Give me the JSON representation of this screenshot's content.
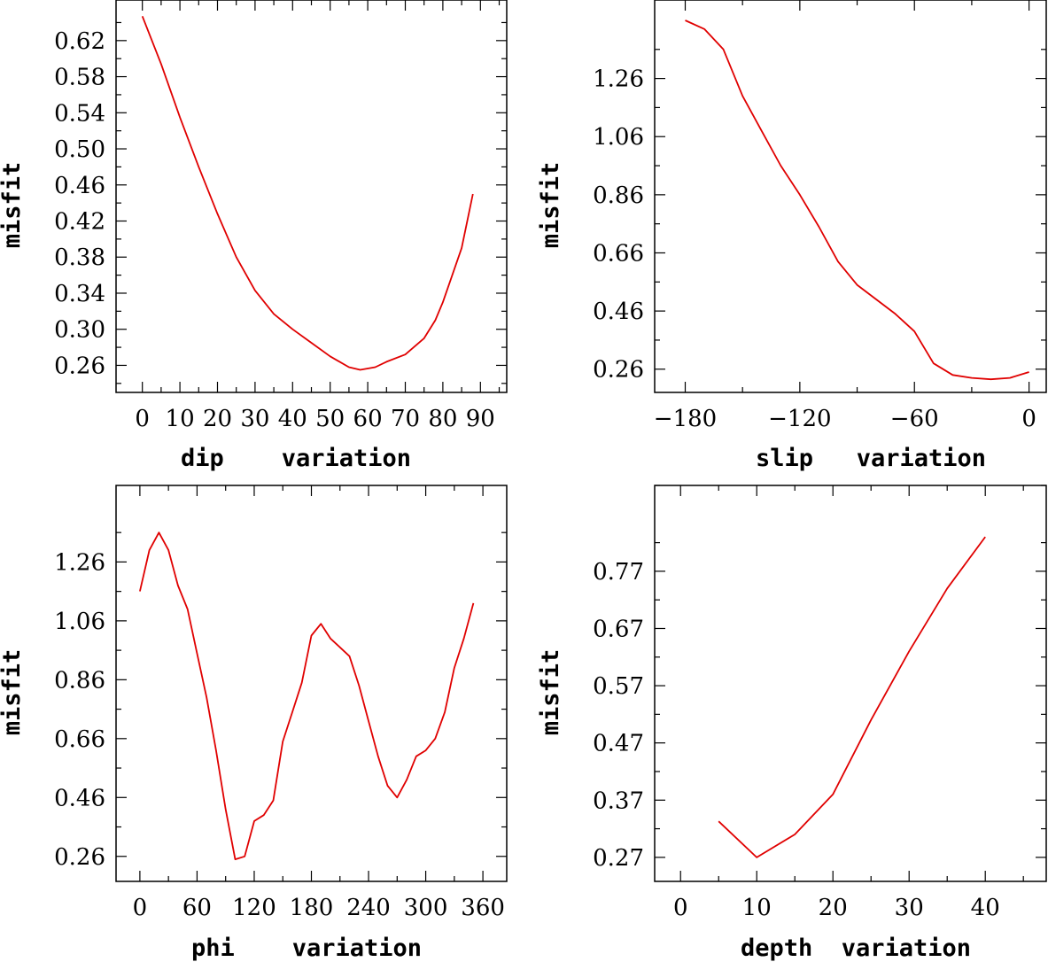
{
  "chart_data": [
    {
      "type": "line",
      "name": "dip",
      "xlabel": "dip    variation",
      "ylabel": "misfit",
      "xlim": [
        -7,
        97
      ],
      "ylim": [
        0.23,
        0.665
      ],
      "xticks": [
        0,
        10,
        20,
        30,
        40,
        50,
        60,
        70,
        80,
        90
      ],
      "xtick_labels": [
        "0",
        "10",
        "20",
        "30",
        "40",
        "50",
        "60",
        "70",
        "80",
        "90"
      ],
      "yticks": [
        0.26,
        0.3,
        0.34,
        0.38,
        0.42,
        0.46,
        0.5,
        0.54,
        0.58,
        0.62
      ],
      "ytick_labels": [
        "0.26",
        "0.30",
        "0.34",
        "0.38",
        "0.42",
        "0.46",
        "0.50",
        "0.54",
        "0.58",
        "0.62"
      ],
      "series": [
        {
          "name": "misfit",
          "color": "#e00000",
          "x": [
            0,
            5,
            10,
            15,
            20,
            25,
            30,
            35,
            40,
            45,
            50,
            55,
            58,
            62,
            65,
            70,
            75,
            78,
            80,
            85,
            88
          ],
          "y": [
            0.647,
            0.594,
            0.535,
            0.48,
            0.428,
            0.38,
            0.343,
            0.317,
            0.3,
            0.285,
            0.27,
            0.258,
            0.255,
            0.258,
            0.264,
            0.272,
            0.29,
            0.31,
            0.33,
            0.39,
            0.45
          ]
        }
      ]
    },
    {
      "type": "line",
      "name": "slip",
      "xlabel": "slip   variation",
      "ylabel": "misfit",
      "xlim": [
        -196,
        9
      ],
      "ylim": [
        0.18,
        1.53
      ],
      "xticks": [
        -180,
        -120,
        -60,
        0
      ],
      "xtick_labels": [
        "−180",
        "−120",
        "−60",
        "0"
      ],
      "yticks": [
        0.26,
        0.46,
        0.66,
        0.86,
        1.06,
        1.26
      ],
      "ytick_labels": [
        "0.26",
        "0.46",
        "0.66",
        "0.86",
        "1.06",
        "1.26"
      ],
      "series": [
        {
          "name": "misfit",
          "color": "#e00000",
          "x": [
            -180,
            -170,
            -160,
            -150,
            -140,
            -130,
            -120,
            -110,
            -100,
            -90,
            -80,
            -70,
            -60,
            -50,
            -40,
            -30,
            -20,
            -10,
            0
          ],
          "y": [
            1.46,
            1.43,
            1.36,
            1.2,
            1.08,
            0.96,
            0.86,
            0.75,
            0.63,
            0.55,
            0.5,
            0.45,
            0.39,
            0.28,
            0.24,
            0.23,
            0.225,
            0.23,
            0.25
          ]
        }
      ]
    },
    {
      "type": "line",
      "name": "phi",
      "xlabel": "phi    variation",
      "ylabel": "misfit",
      "xlim": [
        -25,
        385
      ],
      "ylim": [
        0.175,
        1.52
      ],
      "xticks": [
        0,
        60,
        120,
        180,
        240,
        300,
        360
      ],
      "xtick_labels": [
        "0",
        "60",
        "120",
        "180",
        "240",
        "300",
        "360"
      ],
      "yticks": [
        0.26,
        0.46,
        0.66,
        0.86,
        1.06,
        1.26
      ],
      "ytick_labels": [
        "0.26",
        "0.46",
        "0.66",
        "0.86",
        "1.06",
        "1.26"
      ],
      "series": [
        {
          "name": "misfit",
          "color": "#e00000",
          "x": [
            0,
            10,
            20,
            30,
            40,
            50,
            60,
            70,
            80,
            90,
            100,
            110,
            120,
            130,
            140,
            150,
            160,
            170,
            180,
            190,
            200,
            210,
            220,
            230,
            240,
            250,
            260,
            270,
            280,
            290,
            300,
            310,
            320,
            330,
            340,
            350
          ],
          "y": [
            1.16,
            1.3,
            1.36,
            1.3,
            1.18,
            1.1,
            0.95,
            0.8,
            0.62,
            0.42,
            0.25,
            0.26,
            0.38,
            0.4,
            0.45,
            0.65,
            0.75,
            0.85,
            1.01,
            1.05,
            1.0,
            0.97,
            0.94,
            0.84,
            0.72,
            0.6,
            0.5,
            0.46,
            0.52,
            0.6,
            0.62,
            0.66,
            0.75,
            0.9,
            1.0,
            1.12
          ]
        }
      ]
    },
    {
      "type": "line",
      "name": "depth",
      "xlabel": "depth  variation",
      "ylabel": "misfit",
      "xlim": [
        -3.4,
        48
      ],
      "ylim": [
        0.228,
        0.92
      ],
      "xticks": [
        0,
        10,
        20,
        30,
        40
      ],
      "xtick_labels": [
        "0",
        "10",
        "20",
        "30",
        "40"
      ],
      "yticks": [
        0.27,
        0.37,
        0.47,
        0.57,
        0.67,
        0.77
      ],
      "ytick_labels": [
        "0.27",
        "0.37",
        "0.47",
        "0.57",
        "0.67",
        "0.77"
      ],
      "series": [
        {
          "name": "misfit",
          "color": "#e00000",
          "x": [
            5,
            10,
            15,
            20,
            25,
            30,
            35,
            40
          ],
          "y": [
            0.333,
            0.27,
            0.31,
            0.38,
            0.51,
            0.63,
            0.74,
            0.83
          ]
        }
      ]
    }
  ]
}
